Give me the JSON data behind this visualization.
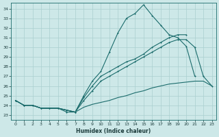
{
  "xlabel": "Humidex (Indice chaleur)",
  "bg_color": "#cde8e8",
  "grid_color": "#aacfcf",
  "line_color": "#1a6b6b",
  "xlim": [
    -0.5,
    23.5
  ],
  "ylim": [
    22.5,
    34.6
  ],
  "xticks": [
    0,
    1,
    2,
    3,
    4,
    5,
    6,
    7,
    8,
    9,
    10,
    11,
    12,
    13,
    14,
    15,
    16,
    17,
    18,
    19,
    20,
    21,
    22,
    23
  ],
  "yticks": [
    23,
    24,
    25,
    26,
    27,
    28,
    29,
    30,
    31,
    32,
    33,
    34
  ],
  "line1_x": [
    0,
    1,
    2,
    3,
    4,
    5,
    6,
    7,
    8,
    9,
    10,
    11,
    12,
    13,
    14,
    15,
    16,
    17,
    18,
    19,
    20,
    21,
    22,
    23
  ],
  "line1_y": [
    24.5,
    24.0,
    24.0,
    23.7,
    23.7,
    23.7,
    23.3,
    23.3,
    25.0,
    26.5,
    27.5,
    29.5,
    31.5,
    33.0,
    33.5,
    34.4,
    33.3,
    32.3,
    31.3,
    31.0,
    30.1,
    27.0,
    null,
    null
  ],
  "line2_x": [
    0,
    1,
    2,
    3,
    4,
    5,
    6,
    7,
    8,
    9,
    10,
    11,
    12,
    13,
    14,
    15,
    16,
    17,
    18,
    19,
    20,
    21,
    22,
    23
  ],
  "line2_y": [
    24.5,
    24.0,
    24.0,
    23.7,
    23.7,
    23.7,
    23.5,
    23.3,
    24.8,
    26.0,
    27.0,
    27.5,
    28.0,
    28.5,
    28.8,
    29.3,
    30.0,
    30.5,
    31.0,
    31.3,
    31.3,
    null,
    null,
    null
  ],
  "line3_x": [
    0,
    1,
    2,
    3,
    4,
    5,
    6,
    7,
    8,
    9,
    10,
    11,
    12,
    13,
    14,
    15,
    16,
    17,
    18,
    19,
    20,
    21,
    22,
    23
  ],
  "line3_y": [
    24.5,
    24.0,
    24.0,
    23.7,
    23.7,
    23.7,
    23.5,
    23.3,
    24.5,
    25.5,
    26.5,
    27.0,
    27.5,
    28.0,
    28.5,
    29.0,
    29.5,
    30.0,
    30.5,
    30.8,
    30.8,
    30.0,
    27.0,
    26.0
  ],
  "line4_x": [
    0,
    1,
    2,
    3,
    4,
    5,
    6,
    7,
    8,
    9,
    10,
    11,
    12,
    13,
    14,
    15,
    16,
    17,
    18,
    19,
    20,
    21,
    22,
    23
  ],
  "line4_y": [
    24.5,
    24.0,
    24.0,
    23.7,
    23.7,
    23.7,
    23.5,
    23.3,
    23.8,
    24.1,
    24.3,
    24.5,
    24.8,
    25.0,
    25.3,
    25.5,
    25.8,
    26.0,
    26.2,
    26.3,
    26.4,
    26.5,
    26.5,
    26.0
  ]
}
